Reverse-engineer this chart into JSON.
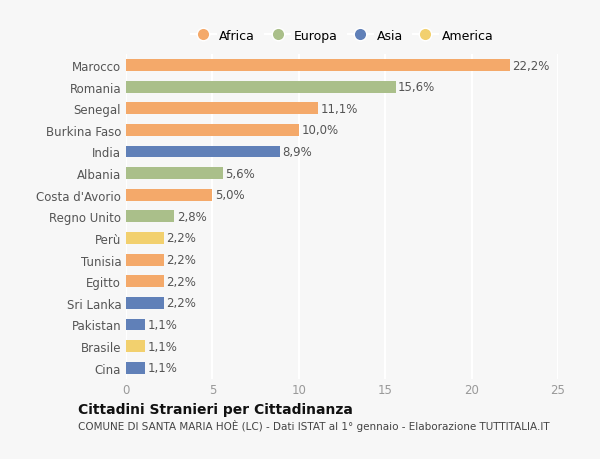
{
  "countries": [
    "Marocco",
    "Romania",
    "Senegal",
    "Burkina Faso",
    "India",
    "Albania",
    "Costa d'Avorio",
    "Regno Unito",
    "Perù",
    "Tunisia",
    "Egitto",
    "Sri Lanka",
    "Pakistan",
    "Brasile",
    "Cina"
  ],
  "values": [
    22.2,
    15.6,
    11.1,
    10.0,
    8.9,
    5.6,
    5.0,
    2.8,
    2.2,
    2.2,
    2.2,
    2.2,
    1.1,
    1.1,
    1.1
  ],
  "labels": [
    "22,2%",
    "15,6%",
    "11,1%",
    "10,0%",
    "8,9%",
    "5,6%",
    "5,0%",
    "2,8%",
    "2,2%",
    "2,2%",
    "2,2%",
    "2,2%",
    "1,1%",
    "1,1%",
    "1,1%"
  ],
  "continents": [
    "Africa",
    "Europa",
    "Africa",
    "Africa",
    "Asia",
    "Europa",
    "Africa",
    "Europa",
    "America",
    "Africa",
    "Africa",
    "Asia",
    "Asia",
    "America",
    "Asia"
  ],
  "continent_colors": {
    "Africa": "#F4A96A",
    "Europa": "#AABF8A",
    "Asia": "#6080B8",
    "America": "#F2D06E"
  },
  "legend_order": [
    "Africa",
    "Europa",
    "Asia",
    "America"
  ],
  "xlim": [
    0,
    25
  ],
  "xticks": [
    0,
    5,
    10,
    15,
    20,
    25
  ],
  "title": "Cittadini Stranieri per Cittadinanza",
  "subtitle": "COMUNE DI SANTA MARIA HOÈ (LC) - Dati ISTAT al 1° gennaio - Elaborazione TUTTITALIA.IT",
  "background_color": "#f7f7f7",
  "bar_height": 0.55,
  "label_fontsize": 8.5,
  "tick_fontsize": 8.5,
  "title_fontsize": 10,
  "subtitle_fontsize": 7.5
}
